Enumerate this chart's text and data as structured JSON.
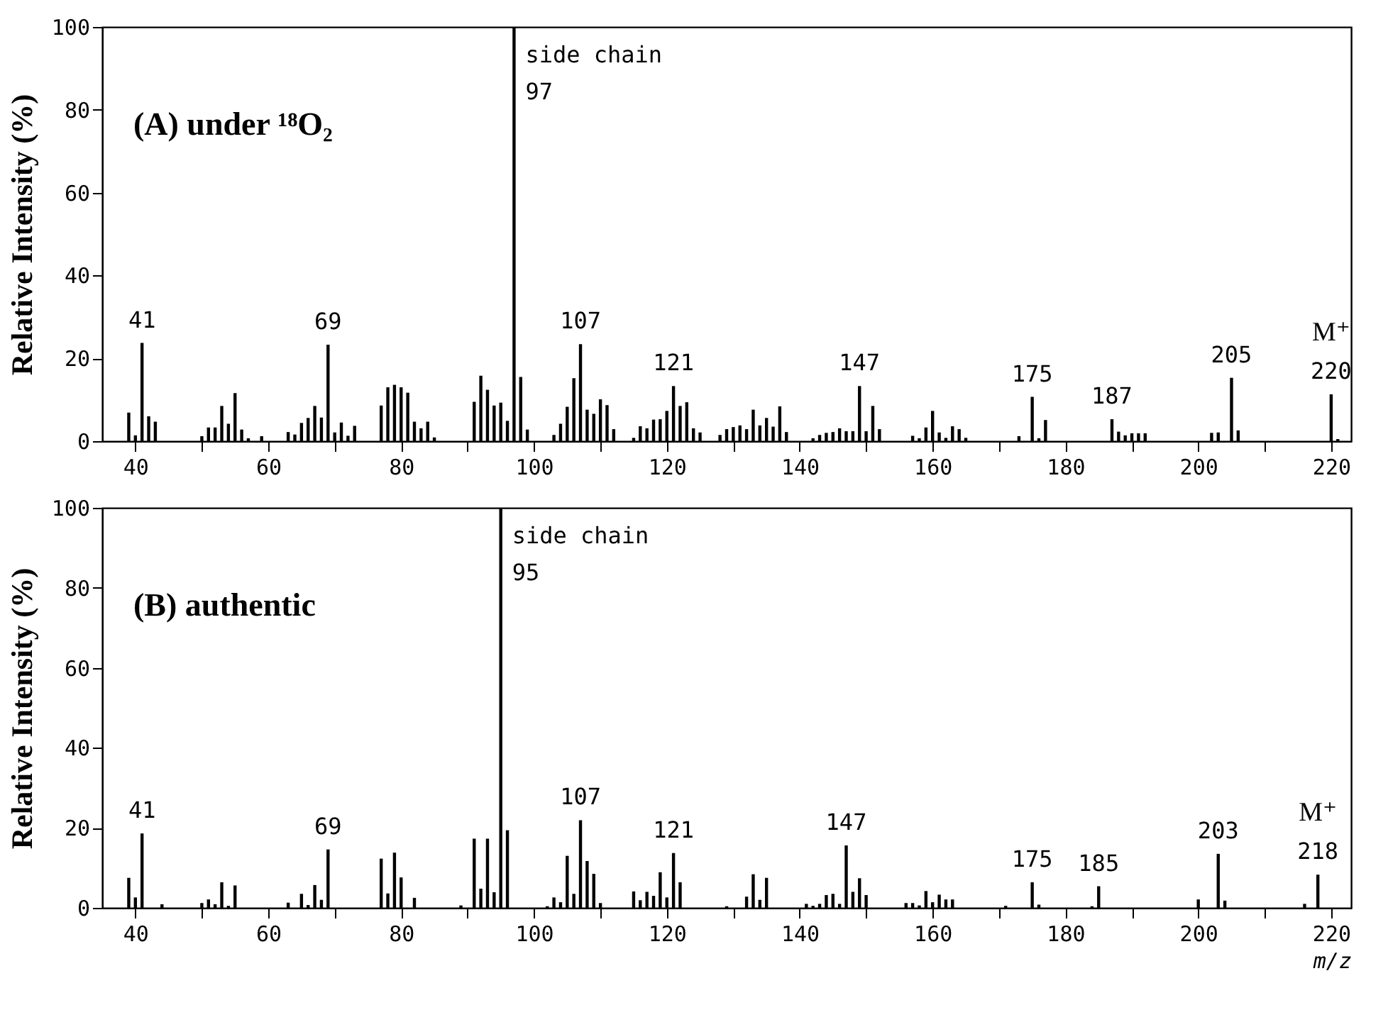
{
  "chart_data": [
    {
      "type": "bar",
      "title": "(A) under ¹⁸O₂",
      "ylabel": "Relative Intensity (%)",
      "color": "#000000",
      "grid": false,
      "xlim": [
        35,
        223
      ],
      "ylim": [
        0,
        100
      ],
      "xticks": [
        40,
        {
          "value": 50,
          "label": null
        },
        60,
        {
          "value": 70,
          "label": null
        },
        80,
        {
          "value": 90,
          "label": null
        },
        100,
        {
          "value": 110,
          "label": null
        },
        120,
        {
          "value": 130,
          "label": null
        },
        140,
        {
          "value": 150,
          "label": null
        },
        160,
        {
          "value": 170,
          "label": null
        },
        180,
        {
          "value": 190,
          "label": null
        },
        200,
        {
          "value": 210,
          "label": null
        },
        220
      ],
      "yticks": [
        0,
        20,
        40,
        60,
        80,
        100
      ],
      "x": [
        39,
        40,
        41,
        42,
        43,
        50,
        51,
        52,
        53,
        54,
        55,
        56,
        57,
        59,
        63,
        64,
        65,
        66,
        67,
        68,
        69,
        70,
        71,
        72,
        73,
        77,
        78,
        79,
        80,
        81,
        82,
        83,
        84,
        85,
        91,
        92,
        93,
        94,
        95,
        96,
        97,
        98,
        99,
        103,
        104,
        105,
        106,
        107,
        108,
        109,
        110,
        111,
        112,
        115,
        116,
        117,
        118,
        119,
        120,
        121,
        122,
        123,
        124,
        125,
        128,
        129,
        130,
        131,
        132,
        133,
        134,
        135,
        136,
        137,
        138,
        142,
        143,
        144,
        145,
        146,
        147,
        148,
        149,
        150,
        151,
        152,
        157,
        158,
        159,
        160,
        161,
        162,
        163,
        164,
        165,
        173,
        175,
        176,
        177,
        187,
        188,
        189,
        190,
        191,
        192,
        202,
        203,
        205,
        206,
        220,
        221
      ],
      "values": [
        6.9,
        1.4,
        23.7,
        6,
        4.7,
        1.2,
        3.3,
        3.3,
        8.5,
        4.2,
        11.6,
        2.8,
        0.7,
        1.2,
        2.2,
        1.6,
        4.4,
        5.6,
        8.5,
        5.7,
        23.3,
        2.1,
        4.5,
        1.3,
        3.7,
        8.6,
        13,
        13.6,
        13,
        11.7,
        4.7,
        3.1,
        4.7,
        0.9,
        9.5,
        15.8,
        12.4,
        8.6,
        9.3,
        4.9,
        100,
        15.5,
        2.8,
        1.5,
        4.2,
        8.3,
        15.2,
        23.4,
        7.6,
        6.6,
        10.1,
        8.7,
        2.9,
        0.8,
        3.6,
        3.1,
        5.2,
        5.3,
        7.3,
        13.3,
        8.5,
        9.4,
        3.1,
        2.1,
        1.5,
        2.9,
        3.4,
        3.8,
        2.9,
        7.6,
        3.8,
        5.6,
        3.5,
        8.4,
        2.2,
        0.7,
        1.5,
        2,
        2.2,
        3.1,
        2.4,
        2.4,
        13.3,
        2.4,
        8.5,
        2.9,
        1.3,
        0.7,
        3.3,
        7.3,
        2.1,
        0.8,
        3.6,
        2.9,
        0.8,
        1.2,
        10.7,
        0.7,
        5.1,
        5.3,
        2.3,
        1.4,
        1.9,
        1.9,
        1.9,
        2,
        2.1,
        15.3,
        2.6,
        11.3,
        0.5
      ],
      "annotations": [
        {
          "text": "side chain",
          "x": 97,
          "y": 100
        },
        {
          "text": "97",
          "x": 97,
          "y": 100
        },
        {
          "text": "41",
          "x": 41,
          "y": 23.7
        },
        {
          "text": "69",
          "x": 69,
          "y": 23.3
        },
        {
          "text": "107",
          "x": 107,
          "y": 23.4
        },
        {
          "text": "121",
          "x": 121,
          "y": 13.3
        },
        {
          "text": "147",
          "x": 149,
          "y": 13.3
        },
        {
          "text": "175",
          "x": 175,
          "y": 10.7
        },
        {
          "text": "187",
          "x": 187,
          "y": 5.3
        },
        {
          "text": "205",
          "x": 205,
          "y": 15.3
        },
        {
          "text": "M⁺",
          "x": 220,
          "y": 11.3
        },
        {
          "text": "220",
          "x": 220,
          "y": 11.3
        }
      ]
    },
    {
      "type": "bar",
      "title": "(B) authentic",
      "xlabel": "m/z",
      "ylabel": "Relative Intensity (%)",
      "color": "#000000",
      "grid": false,
      "xlim": [
        35,
        223
      ],
      "ylim": [
        0,
        100
      ],
      "xticks": [
        40,
        {
          "value": 50,
          "label": null
        },
        60,
        {
          "value": 70,
          "label": null
        },
        80,
        {
          "value": 90,
          "label": null
        },
        100,
        {
          "value": 110,
          "label": null
        },
        120,
        {
          "value": 130,
          "label": null
        },
        140,
        {
          "value": 150,
          "label": null
        },
        160,
        {
          "value": 170,
          "label": null
        },
        180,
        {
          "value": 190,
          "label": null
        },
        200,
        {
          "value": 210,
          "label": null
        },
        220
      ],
      "yticks": [
        0,
        20,
        40,
        60,
        80,
        100
      ],
      "x": [
        39,
        40,
        41,
        44,
        50,
        51,
        52,
        53,
        54,
        55,
        63,
        65,
        66,
        67,
        68,
        69,
        77,
        78,
        79,
        80,
        82,
        89,
        91,
        92,
        93,
        94,
        95,
        96,
        102,
        103,
        104,
        105,
        106,
        107,
        108,
        109,
        110,
        115,
        116,
        117,
        118,
        119,
        120,
        121,
        122,
        129,
        132,
        133,
        134,
        135,
        141,
        142,
        143,
        144,
        145,
        146,
        147,
        148,
        149,
        150,
        156,
        157,
        158,
        159,
        160,
        161,
        162,
        163,
        171,
        175,
        176,
        184,
        185,
        200,
        203,
        204,
        216,
        218
      ],
      "values": [
        7.5,
        2.6,
        18.6,
        0.9,
        1.2,
        2.1,
        0.9,
        6.4,
        0.5,
        5.6,
        1.3,
        3.5,
        0.7,
        5.7,
        2,
        14.6,
        12.3,
        3.6,
        13.8,
        7.6,
        2.5,
        0.6,
        17.3,
        4.8,
        17.3,
        3.9,
        100,
        19.4,
        0.4,
        2.6,
        1.4,
        13,
        3.5,
        21.9,
        11.7,
        8.5,
        1.2,
        4.1,
        1.9,
        4,
        3,
        8.9,
        2.6,
        13.7,
        6.4,
        0.4,
        2.8,
        8.4,
        2,
        7.5,
        1,
        0.5,
        1,
        3.2,
        3.5,
        1,
        15.6,
        4,
        7.4,
        3.2,
        1.2,
        1.2,
        0.6,
        4.2,
        1.4,
        3.3,
        2.1,
        2.1,
        0.5,
        6.4,
        0.8,
        0.4,
        5.4,
        2.1,
        13.5,
        1.8,
        1,
        8.3
      ],
      "annotations": [
        {
          "text": "side chain",
          "x": 95,
          "y": 100
        },
        {
          "text": "95",
          "x": 95,
          "y": 100
        },
        {
          "text": "41",
          "x": 41,
          "y": 18.6
        },
        {
          "text": "69",
          "x": 69,
          "y": 14.6
        },
        {
          "text": "107",
          "x": 107,
          "y": 21.9
        },
        {
          "text": "121",
          "x": 121,
          "y": 13.7
        },
        {
          "text": "147",
          "x": 147,
          "y": 15.6
        },
        {
          "text": "175",
          "x": 175,
          "y": 6.4
        },
        {
          "text": "185",
          "x": 185,
          "y": 5.4
        },
        {
          "text": "203",
          "x": 203,
          "y": 13.5
        },
        {
          "text": "M⁺",
          "x": 218,
          "y": 8.3
        },
        {
          "text": "218",
          "x": 218,
          "y": 8.3
        }
      ]
    }
  ]
}
